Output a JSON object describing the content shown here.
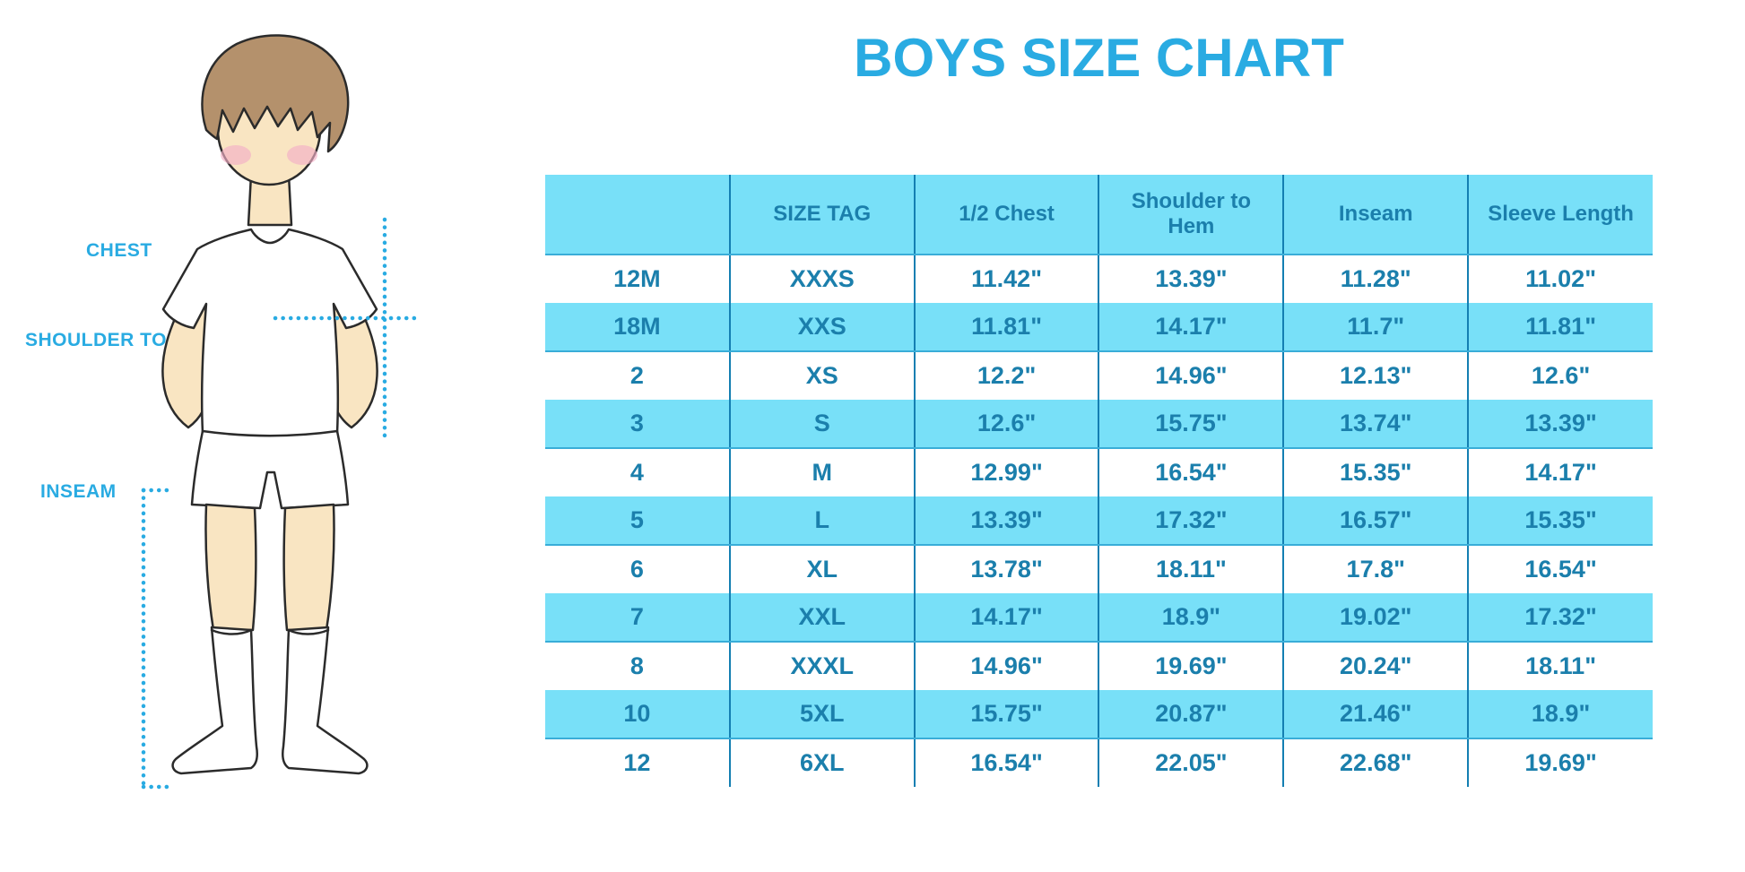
{
  "page": {
    "background": "#FFFFFF"
  },
  "colors": {
    "accent_blue": "#29ABE2",
    "stripe_cyan": "#78E0F8",
    "table_text": "#1B7FAC",
    "grid_line": "#147FB2",
    "stripe_edge": "#39ADD8",
    "skin": "#F9E5C2",
    "hair": "#B4916C",
    "outline": "#2B2B2B",
    "cheek": "#F2AFC6",
    "garment_white": "#FFFFFF"
  },
  "diagram": {
    "chest_label": "CHEST",
    "shoulder_label": "SHOULDER TO HEM",
    "inseam_label": "INSEAM"
  },
  "chart_data": {
    "type": "table",
    "title": "BOYS SIZE CHART",
    "columns": [
      "",
      "SIZE TAG",
      "1/2 Chest",
      "Shoulder to Hem",
      "Inseam",
      "Sleeve Length"
    ],
    "rows": [
      [
        "12M",
        "XXXS",
        "11.42\"",
        "13.39\"",
        "11.28\"",
        "11.02\""
      ],
      [
        "18M",
        "XXS",
        "11.81\"",
        "14.17\"",
        "11.7\"",
        "11.81\""
      ],
      [
        "2",
        "XS",
        "12.2\"",
        "14.96\"",
        "12.13\"",
        "12.6\""
      ],
      [
        "3",
        "S",
        "12.6\"",
        "15.75\"",
        "13.74\"",
        "13.39\""
      ],
      [
        "4",
        "M",
        "12.99\"",
        "16.54\"",
        "15.35\"",
        "14.17\""
      ],
      [
        "5",
        "L",
        "13.39\"",
        "17.32\"",
        "16.57\"",
        "15.35\""
      ],
      [
        "6",
        "XL",
        "13.78\"",
        "18.11\"",
        "17.8\"",
        "16.54\""
      ],
      [
        "7",
        "XXL",
        "14.17\"",
        "18.9\"",
        "19.02\"",
        "17.32\""
      ],
      [
        "8",
        "XXXL",
        "14.96\"",
        "19.69\"",
        "20.24\"",
        "18.11\""
      ],
      [
        "10",
        "5XL",
        "15.75\"",
        "20.87\"",
        "21.46\"",
        "18.9\""
      ],
      [
        "12",
        "6XL",
        "16.54\"",
        "22.05\"",
        "22.68\"",
        "19.69\""
      ]
    ],
    "legend_position": "none",
    "grid": "column-separators"
  }
}
